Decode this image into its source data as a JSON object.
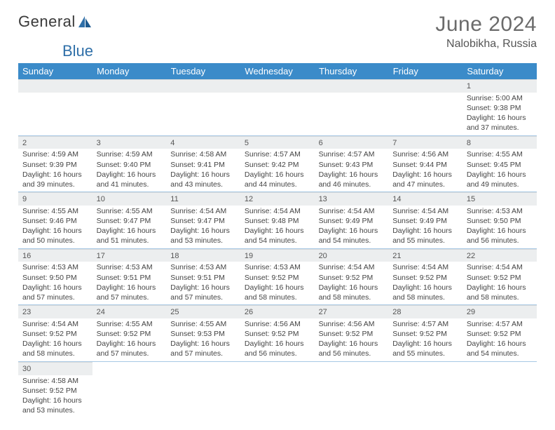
{
  "brand": {
    "name1": "General",
    "name2": "Blue"
  },
  "title": "June 2024",
  "location": "Nalobikha, Russia",
  "colors": {
    "header_bg": "#3b8bc9",
    "header_fg": "#ffffff",
    "daynum_bg": "#eceeef",
    "cell_border": "#a7c8e4",
    "title_color": "#6b6b6b",
    "logo_blue": "#2f6fa8"
  },
  "days": [
    "Sunday",
    "Monday",
    "Tuesday",
    "Wednesday",
    "Thursday",
    "Friday",
    "Saturday"
  ],
  "weeks": [
    [
      null,
      null,
      null,
      null,
      null,
      null,
      {
        "n": "1",
        "sr": "5:00 AM",
        "ss": "9:38 PM",
        "dl": "16 hours and 37 minutes."
      }
    ],
    [
      {
        "n": "2",
        "sr": "4:59 AM",
        "ss": "9:39 PM",
        "dl": "16 hours and 39 minutes."
      },
      {
        "n": "3",
        "sr": "4:59 AM",
        "ss": "9:40 PM",
        "dl": "16 hours and 41 minutes."
      },
      {
        "n": "4",
        "sr": "4:58 AM",
        "ss": "9:41 PM",
        "dl": "16 hours and 43 minutes."
      },
      {
        "n": "5",
        "sr": "4:57 AM",
        "ss": "9:42 PM",
        "dl": "16 hours and 44 minutes."
      },
      {
        "n": "6",
        "sr": "4:57 AM",
        "ss": "9:43 PM",
        "dl": "16 hours and 46 minutes."
      },
      {
        "n": "7",
        "sr": "4:56 AM",
        "ss": "9:44 PM",
        "dl": "16 hours and 47 minutes."
      },
      {
        "n": "8",
        "sr": "4:55 AM",
        "ss": "9:45 PM",
        "dl": "16 hours and 49 minutes."
      }
    ],
    [
      {
        "n": "9",
        "sr": "4:55 AM",
        "ss": "9:46 PM",
        "dl": "16 hours and 50 minutes."
      },
      {
        "n": "10",
        "sr": "4:55 AM",
        "ss": "9:47 PM",
        "dl": "16 hours and 51 minutes."
      },
      {
        "n": "11",
        "sr": "4:54 AM",
        "ss": "9:47 PM",
        "dl": "16 hours and 53 minutes."
      },
      {
        "n": "12",
        "sr": "4:54 AM",
        "ss": "9:48 PM",
        "dl": "16 hours and 54 minutes."
      },
      {
        "n": "13",
        "sr": "4:54 AM",
        "ss": "9:49 PM",
        "dl": "16 hours and 54 minutes."
      },
      {
        "n": "14",
        "sr": "4:54 AM",
        "ss": "9:49 PM",
        "dl": "16 hours and 55 minutes."
      },
      {
        "n": "15",
        "sr": "4:53 AM",
        "ss": "9:50 PM",
        "dl": "16 hours and 56 minutes."
      }
    ],
    [
      {
        "n": "16",
        "sr": "4:53 AM",
        "ss": "9:50 PM",
        "dl": "16 hours and 57 minutes."
      },
      {
        "n": "17",
        "sr": "4:53 AM",
        "ss": "9:51 PM",
        "dl": "16 hours and 57 minutes."
      },
      {
        "n": "18",
        "sr": "4:53 AM",
        "ss": "9:51 PM",
        "dl": "16 hours and 57 minutes."
      },
      {
        "n": "19",
        "sr": "4:53 AM",
        "ss": "9:52 PM",
        "dl": "16 hours and 58 minutes."
      },
      {
        "n": "20",
        "sr": "4:54 AM",
        "ss": "9:52 PM",
        "dl": "16 hours and 58 minutes."
      },
      {
        "n": "21",
        "sr": "4:54 AM",
        "ss": "9:52 PM",
        "dl": "16 hours and 58 minutes."
      },
      {
        "n": "22",
        "sr": "4:54 AM",
        "ss": "9:52 PM",
        "dl": "16 hours and 58 minutes."
      }
    ],
    [
      {
        "n": "23",
        "sr": "4:54 AM",
        "ss": "9:52 PM",
        "dl": "16 hours and 58 minutes."
      },
      {
        "n": "24",
        "sr": "4:55 AM",
        "ss": "9:52 PM",
        "dl": "16 hours and 57 minutes."
      },
      {
        "n": "25",
        "sr": "4:55 AM",
        "ss": "9:53 PM",
        "dl": "16 hours and 57 minutes."
      },
      {
        "n": "26",
        "sr": "4:56 AM",
        "ss": "9:52 PM",
        "dl": "16 hours and 56 minutes."
      },
      {
        "n": "27",
        "sr": "4:56 AM",
        "ss": "9:52 PM",
        "dl": "16 hours and 56 minutes."
      },
      {
        "n": "28",
        "sr": "4:57 AM",
        "ss": "9:52 PM",
        "dl": "16 hours and 55 minutes."
      },
      {
        "n": "29",
        "sr": "4:57 AM",
        "ss": "9:52 PM",
        "dl": "16 hours and 54 minutes."
      }
    ],
    [
      {
        "n": "30",
        "sr": "4:58 AM",
        "ss": "9:52 PM",
        "dl": "16 hours and 53 minutes."
      },
      null,
      null,
      null,
      null,
      null,
      null
    ]
  ],
  "labels": {
    "sunrise": "Sunrise:",
    "sunset": "Sunset:",
    "daylight": "Daylight:"
  }
}
